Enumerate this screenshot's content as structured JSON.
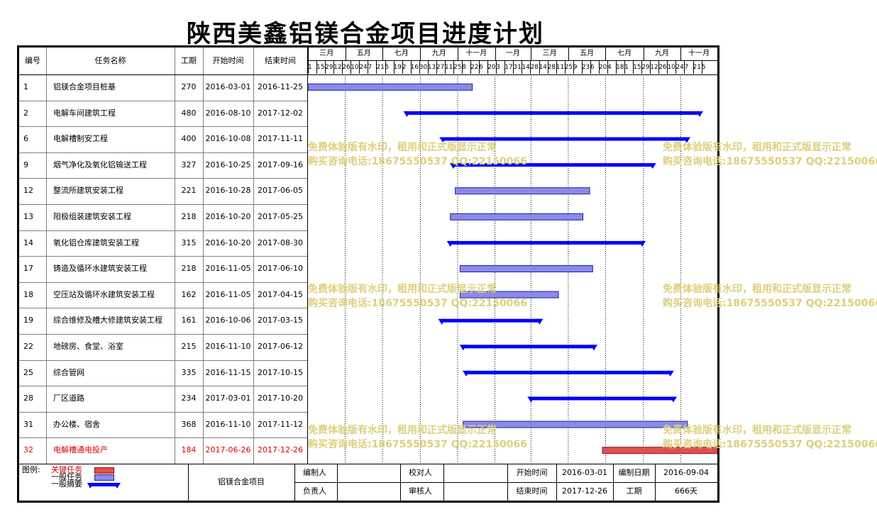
{
  "title": "陕西美鑫铝镁合金项目进度计划",
  "headers": {
    "no": "编号",
    "name": "任务名称",
    "duration": "工期",
    "start": "开始时间",
    "end": "结束时间"
  },
  "months": [
    "三月",
    "五月",
    "七月",
    "九月",
    "十一月",
    "一月",
    "三月",
    "五月",
    "七月",
    "九月",
    "十一月"
  ],
  "day_ticks": [
    "1",
    "15",
    "29",
    "12",
    "26",
    "10",
    "24",
    "7",
    "21",
    "5",
    "19",
    "2",
    "16",
    "30",
    "13",
    "27",
    "11",
    "25",
    "8",
    "22",
    "6",
    "20",
    "3",
    "17",
    "31",
    "14",
    "28",
    "14",
    "28",
    "11",
    "25",
    "9",
    "23",
    "6",
    "20",
    "4",
    "18",
    "1",
    "15",
    "29",
    "12",
    "26",
    "10",
    "24",
    "7",
    "21",
    "5"
  ],
  "tasks": [
    {
      "no": "1",
      "name": "铝镁合金项目桩基",
      "duration": "270",
      "start": "2016-03-01",
      "end": "2016-11-25",
      "type": "general"
    },
    {
      "no": "2",
      "name": "电解车间建筑工程",
      "duration": "480",
      "start": "2016-08-10",
      "end": "2017-12-02",
      "type": "summary"
    },
    {
      "no": "6",
      "name": "电解槽制安工程",
      "duration": "400",
      "start": "2016-10-08",
      "end": "2017-11-11",
      "type": "summary"
    },
    {
      "no": "9",
      "name": "烟气净化及氧化铝输送工程",
      "duration": "327",
      "start": "2016-10-25",
      "end": "2017-09-16",
      "type": "summary"
    },
    {
      "no": "12",
      "name": "整流所建筑安装工程",
      "duration": "221",
      "start": "2016-10-28",
      "end": "2017-06-05",
      "type": "general"
    },
    {
      "no": "13",
      "name": "阳极组装建筑安装工程",
      "duration": "218",
      "start": "2016-10-20",
      "end": "2017-05-25",
      "type": "general"
    },
    {
      "no": "14",
      "name": "氧化铝仓库建筑安装工程",
      "duration": "315",
      "start": "2016-10-20",
      "end": "2017-08-30",
      "type": "summary"
    },
    {
      "no": "17",
      "name": "铸造及循环水建筑安装工程",
      "duration": "218",
      "start": "2016-11-05",
      "end": "2017-06-10",
      "type": "general"
    },
    {
      "no": "18",
      "name": "空压站及循环水建筑安装工程",
      "duration": "162",
      "start": "2016-11-05",
      "end": "2017-04-15",
      "type": "general"
    },
    {
      "no": "19",
      "name": "综合维修及槽大修建筑安装工程",
      "duration": "161",
      "start": "2016-10-06",
      "end": "2017-03-15",
      "type": "summary"
    },
    {
      "no": "22",
      "name": "地磅房、食堂、浴室",
      "duration": "215",
      "start": "2016-11-10",
      "end": "2017-06-12",
      "type": "summary"
    },
    {
      "no": "25",
      "name": "综合管网",
      "duration": "335",
      "start": "2016-11-15",
      "end": "2017-10-15",
      "type": "summary"
    },
    {
      "no": "28",
      "name": "厂区道路",
      "duration": "234",
      "start": "2017-03-01",
      "end": "2017-10-20",
      "type": "summary"
    },
    {
      "no": "31",
      "name": "办公楼、宿舍",
      "duration": "368",
      "start": "2016-11-10",
      "end": "2017-11-12",
      "type": "general"
    },
    {
      "no": "32",
      "name": "电解槽通电投产",
      "duration": "184",
      "start": "2017-06-26",
      "end": "2017-12-26",
      "type": "critical"
    }
  ],
  "legend": {
    "label": "图例:",
    "critical": "关键任务",
    "general": "一般任务",
    "summary": "一般摘要"
  },
  "footer": {
    "project": "铝镁合金项目",
    "editor_label": "编制人",
    "editor_value": "",
    "checker_label": "校对人",
    "checker_value": "",
    "start_label": "开始时间",
    "start_value": "2016-03-01",
    "date_label": "编制日期",
    "date_value": "2016-09-04",
    "owner_label": "负责人",
    "owner_value": "",
    "reviewer_label": "审核人",
    "reviewer_value": "",
    "end_label": "结束时间",
    "end_value": "2017-12-26",
    "duration_label": "工期",
    "duration_value": "666天"
  },
  "watermark": {
    "line1": "免费体验版有水印，租用和正式版显示正常",
    "line2": "购买咨询电话:18675550537 QQ:22150066"
  },
  "colors": {
    "critical": "#e05050",
    "general": "#8a8ae8",
    "summary": "#0000ff",
    "critical_text": "#e00000"
  },
  "chart_data": {
    "type": "gantt",
    "title": "陕西美鑫铝镁合金项目进度计划",
    "x_range": [
      "2016-03-01",
      "2017-12-26"
    ],
    "tasks": [
      {
        "name": "铝镁合金项目桩基",
        "start": "2016-03-01",
        "end": "2016-11-25",
        "duration": 270,
        "type": "general"
      },
      {
        "name": "电解车间建筑工程",
        "start": "2016-08-10",
        "end": "2017-12-02",
        "duration": 480,
        "type": "summary"
      },
      {
        "name": "电解槽制安工程",
        "start": "2016-10-08",
        "end": "2017-11-11",
        "duration": 400,
        "type": "summary"
      },
      {
        "name": "烟气净化及氧化铝输送工程",
        "start": "2016-10-25",
        "end": "2017-09-16",
        "duration": 327,
        "type": "summary"
      },
      {
        "name": "整流所建筑安装工程",
        "start": "2016-10-28",
        "end": "2017-06-05",
        "duration": 221,
        "type": "general"
      },
      {
        "name": "阳极组装建筑安装工程",
        "start": "2016-10-20",
        "end": "2017-05-25",
        "duration": 218,
        "type": "general"
      },
      {
        "name": "氧化铝仓库建筑安装工程",
        "start": "2016-10-20",
        "end": "2017-08-30",
        "duration": 315,
        "type": "summary"
      },
      {
        "name": "铸造及循环水建筑安装工程",
        "start": "2016-11-05",
        "end": "2017-06-10",
        "duration": 218,
        "type": "general"
      },
      {
        "name": "空压站及循环水建筑安装工程",
        "start": "2016-11-05",
        "end": "2017-04-15",
        "duration": 162,
        "type": "general"
      },
      {
        "name": "综合维修及槽大修建筑安装工程",
        "start": "2016-10-06",
        "end": "2017-03-15",
        "duration": 161,
        "type": "summary"
      },
      {
        "name": "地磅房、食堂、浴室",
        "start": "2016-11-10",
        "end": "2017-06-12",
        "duration": 215,
        "type": "summary"
      },
      {
        "name": "综合管网",
        "start": "2016-11-15",
        "end": "2017-10-15",
        "duration": 335,
        "type": "summary"
      },
      {
        "name": "厂区道路",
        "start": "2017-03-01",
        "end": "2017-10-20",
        "duration": 234,
        "type": "summary"
      },
      {
        "name": "办公楼、宿舍",
        "start": "2016-11-10",
        "end": "2017-11-12",
        "duration": 368,
        "type": "general"
      },
      {
        "name": "电解槽通电投产",
        "start": "2017-06-26",
        "end": "2017-12-26",
        "duration": 184,
        "type": "critical"
      }
    ]
  }
}
